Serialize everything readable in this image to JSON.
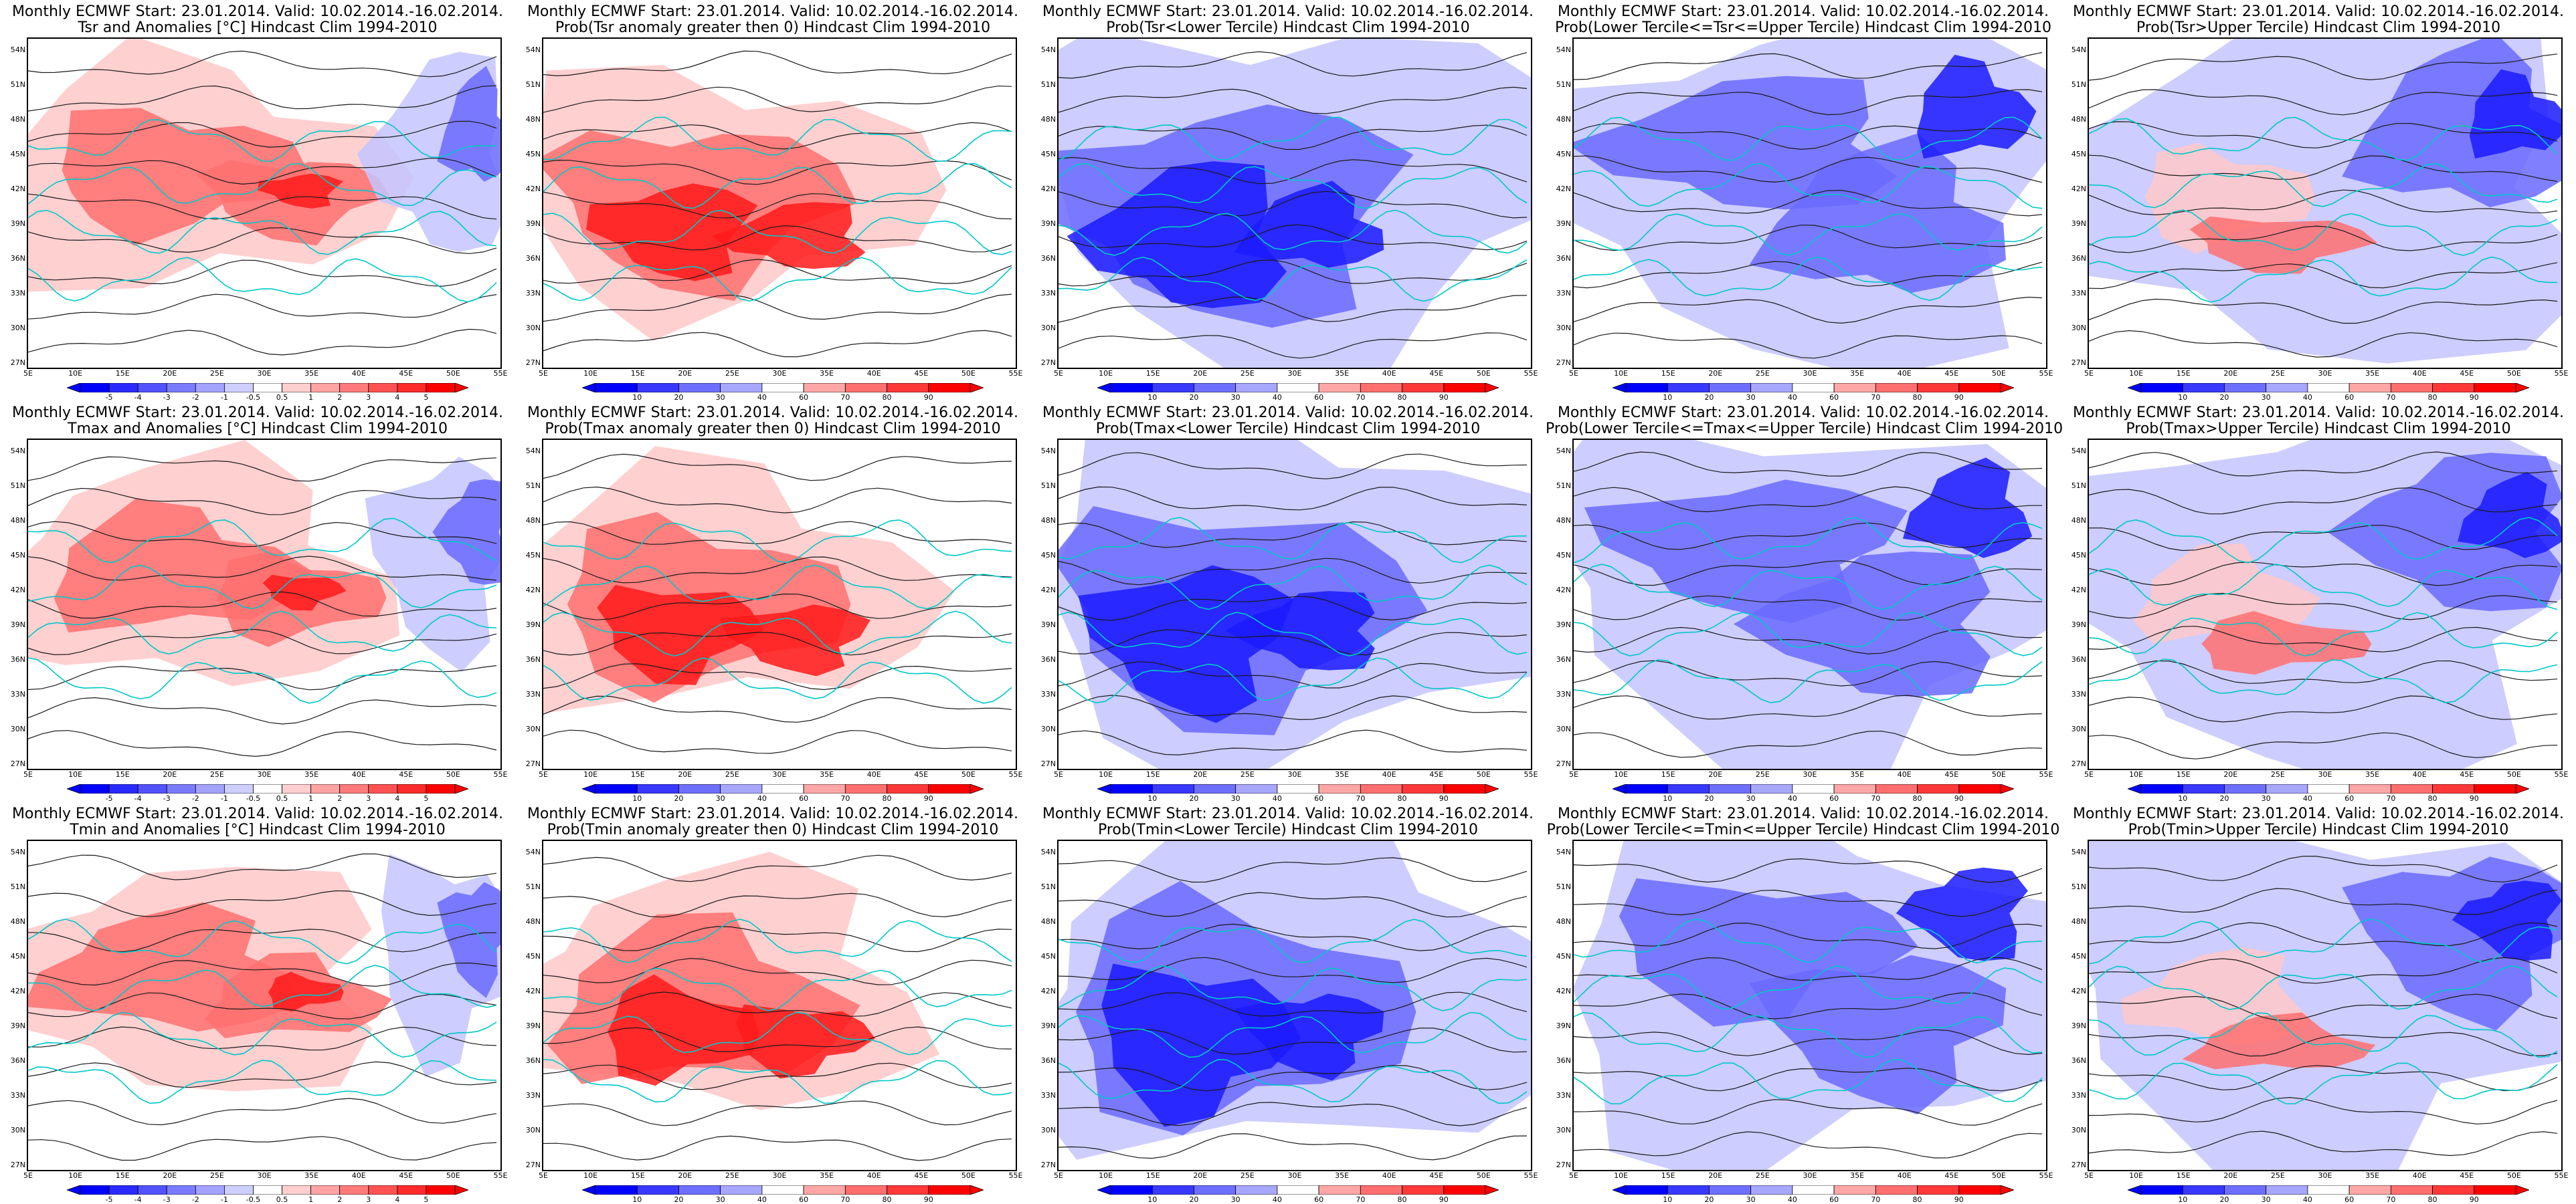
{
  "run_prefix": "Monthly ECMWF Start: 23.01.2014. Valid: 10.02.2014.-16.02.2014.",
  "latitudes": [
    "54N",
    "51N",
    "48N",
    "45N",
    "42N",
    "39N",
    "36N",
    "33N",
    "30N",
    "27N"
  ],
  "longitudes": [
    "5E",
    "10E",
    "15E",
    "20E",
    "25E",
    "30E",
    "35E",
    "40E",
    "45E",
    "50E",
    "55E"
  ],
  "colors": {
    "deep_blue": "#1a1aff",
    "mid_blue": "#6a6aff",
    "light_blue": "#c4c4ff",
    "pale_red": "#ffc8c8",
    "mid_red": "#ff7070",
    "deep_red": "#ff1a1a",
    "contour": "#1a1a1a",
    "coast": "#00c8c8"
  },
  "colorbars": {
    "anomaly": {
      "ticks": [
        "-5",
        "-4",
        "-3",
        "-2",
        "-1",
        "-0.5",
        "0.5",
        "1",
        "2",
        "3",
        "4",
        "5"
      ],
      "colors": [
        "#0000ff",
        "#2a2aff",
        "#5252ff",
        "#7b7bff",
        "#a3a3ff",
        "#cfcfff",
        "#ffffff",
        "#ffcfcf",
        "#ffa3a3",
        "#ff7b7b",
        "#ff5252",
        "#ff2a2a",
        "#ff0000"
      ]
    },
    "probability": {
      "ticks": [
        "10",
        "20",
        "30",
        "40",
        "60",
        "70",
        "80",
        "90"
      ],
      "colors": [
        "#0000ff",
        "#3838ff",
        "#6f6fff",
        "#a7a7ff",
        "#ffffff",
        "#ffa7a7",
        "#ff6f6f",
        "#ff3838",
        "#ff0000"
      ]
    }
  },
  "panels": [
    {
      "title2": "Tsr and Anomalies [°C] Hindcast Clim 1994-2010",
      "colorbar": "anomaly",
      "field": "anomaly"
    },
    {
      "title2": "Prob(Tsr anomaly greater then 0) Hindcast Clim 1994-2010",
      "colorbar": "probability",
      "field": "prob_warm"
    },
    {
      "title2": "Prob(Tsr<Lower Tercile) Hindcast Clim 1994-2010",
      "colorbar": "probability",
      "field": "prob_cold"
    },
    {
      "title2": "Prob(Lower Tercile<=Tsr<=Upper Tercile) Hindcast Clim 1994-2010",
      "colorbar": "probability",
      "field": "prob_mid"
    },
    {
      "title2": "Prob(Tsr>Upper Tercile) Hindcast Clim 1994-2010",
      "colorbar": "probability",
      "field": "prob_upper"
    },
    {
      "title2": "Tmax and Anomalies [°C] Hindcast Clim 1994-2010",
      "colorbar": "anomaly",
      "field": "anomaly"
    },
    {
      "title2": "Prob(Tmax anomaly greater then 0) Hindcast Clim 1994-2010",
      "colorbar": "probability",
      "field": "prob_warm"
    },
    {
      "title2": "Prob(Tmax<Lower Tercile) Hindcast Clim 1994-2010",
      "colorbar": "probability",
      "field": "prob_cold"
    },
    {
      "title2": "Prob(Lower Tercile<=Tmax<=Upper Tercile) Hindcast Clim 1994-2010",
      "colorbar": "probability",
      "field": "prob_mid"
    },
    {
      "title2": "Prob(Tmax>Upper Tercile) Hindcast Clim 1994-2010",
      "colorbar": "probability",
      "field": "prob_upper"
    },
    {
      "title2": "Tmin and Anomalies [°C] Hindcast Clim 1994-2010",
      "colorbar": "anomaly",
      "field": "anomaly"
    },
    {
      "title2": "Prob(Tmin anomaly greater then 0) Hindcast Clim 1994-2010",
      "colorbar": "probability",
      "field": "prob_warm"
    },
    {
      "title2": "Prob(Tmin<Lower Tercile) Hindcast Clim 1994-2010",
      "colorbar": "probability",
      "field": "prob_cold"
    },
    {
      "title2": "Prob(Lower Tercile<=Tmin<=Upper Tercile) Hindcast Clim 1994-2010",
      "colorbar": "probability",
      "field": "prob_mid"
    },
    {
      "title2": "Prob(Tmin>Upper Tercile) Hindcast Clim 1994-2010",
      "colorbar": "probability",
      "field": "prob_upper"
    }
  ]
}
